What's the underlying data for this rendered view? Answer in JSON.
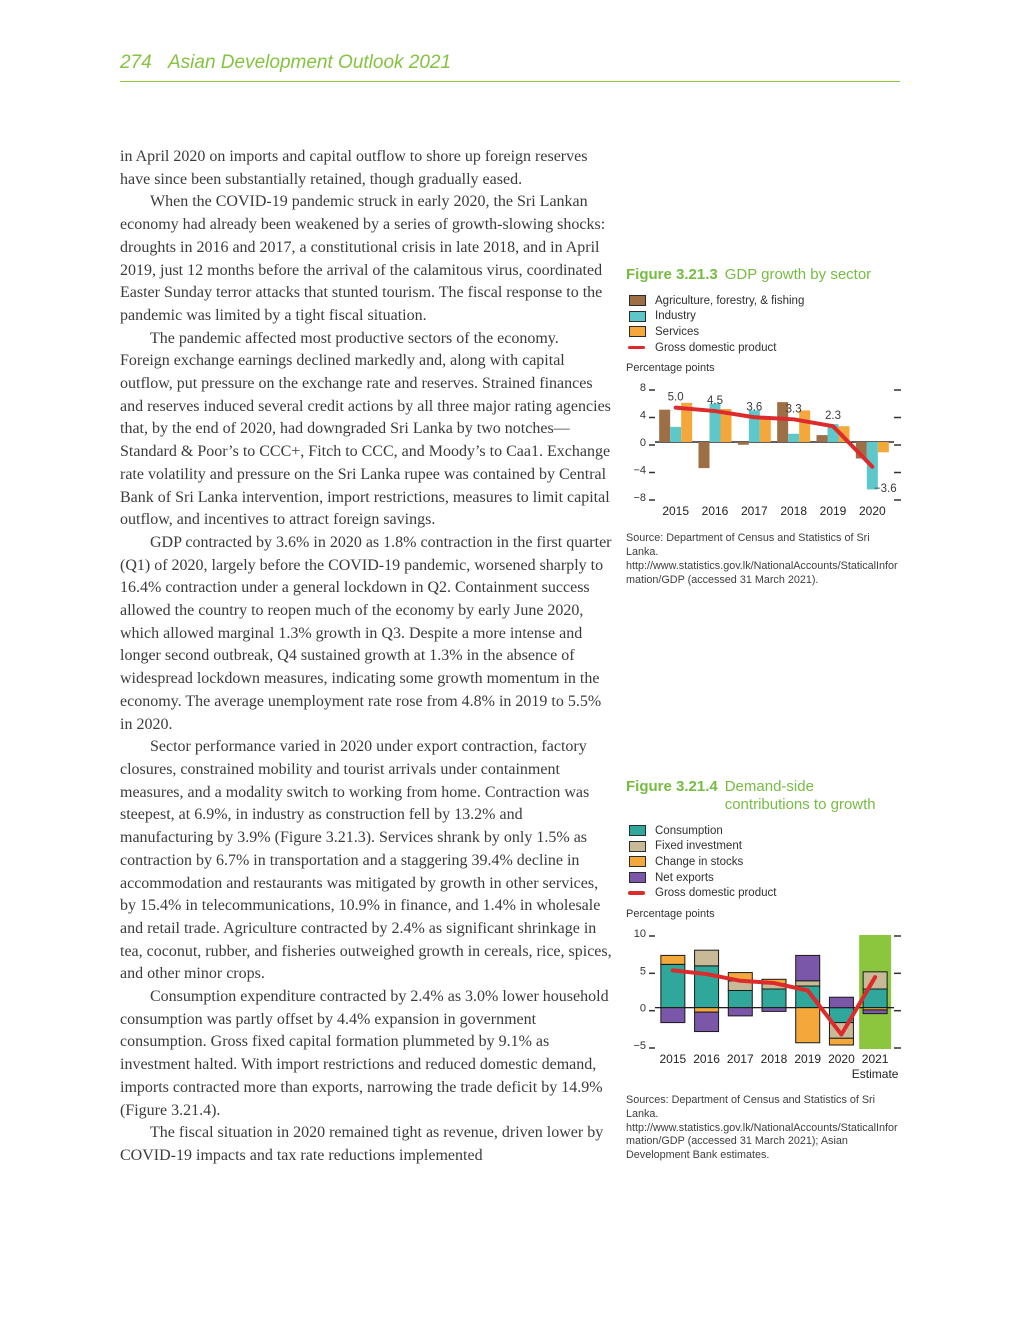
{
  "page": {
    "number": "274",
    "publication": "Asian Development Outlook 2021"
  },
  "body": {
    "paragraphs": [
      {
        "indent": false,
        "text": "in April 2020 on imports and capital outflow to shore up foreign reserves have since been substantially retained, though gradually eased."
      },
      {
        "indent": true,
        "text": "When the COVID-19 pandemic struck in early 2020, the Sri Lankan economy had already been weakened by a series of growth-slowing shocks: droughts in 2016 and 2017, a constitutional crisis in late 2018, and in April 2019, just 12 months before the arrival of the calamitous virus, coordinated Easter Sunday terror attacks that stunted tourism. The fiscal response to the pandemic was limited by a tight fiscal situation."
      },
      {
        "indent": true,
        "text": "The pandemic affected most productive sectors of the economy. Foreign exchange earnings declined markedly and, along with capital outflow, put pressure on the exchange rate and reserves. Strained finances and reserves induced several credit actions by all three major rating agencies that, by the end of 2020, had downgraded Sri Lanka by two notches—Standard & Poor’s to CCC+, Fitch to CCC, and Moody’s to Caa1. Exchange rate volatility and pressure on the Sri Lanka rupee was contained by Central Bank of Sri Lanka intervention, import restrictions, measures to limit capital outflow, and incentives to attract foreign savings."
      },
      {
        "indent": true,
        "text": "GDP contracted by 3.6% in 2020 as 1.8% contraction in the first quarter (Q1) of 2020, largely before the COVID-19 pandemic, worsened sharply to 16.4% contraction under a general lockdown in Q2. Containment success allowed the country to reopen much of the economy by early June 2020, which allowed marginal 1.3% growth in Q3. Despite a more intense and longer second outbreak, Q4 sustained growth at 1.3% in the absence of widespread lockdown measures, indicating some growth momentum in the economy. The average unemployment rate rose from 4.8% in 2019 to 5.5% in 2020."
      },
      {
        "indent": true,
        "text": "Sector performance varied in 2020 under export contraction, factory closures, constrained mobility and tourist arrivals under containment measures, and a modality switch to working from home. Contraction was steepest, at 6.9%, in industry as construction fell by 13.2% and manufacturing by 3.9% (Figure 3.21.3). Services shrank by only 1.5% as contraction by 6.7% in transportation and a staggering 39.4% decline in accommodation and restaurants was mitigated by growth in other services, by 15.4% in telecommunications, 10.9% in finance, and 1.4% in wholesale and retail trade. Agriculture contracted by 2.4% as significant shrinkage in tea, coconut, rubber, and fisheries outweighed growth in cereals, rice, spices, and other minor crops."
      },
      {
        "indent": true,
        "text": "Consumption expenditure contracted by 2.4% as 3.0% lower household consumption was partly offset by 4.4% expansion in government consumption. Gross fixed capital formation plummeted by 9.1% as investment halted. With import restrictions and reduced domestic demand, imports contracted more than exports, narrowing the trade deficit by 14.9% (Figure 3.21.4)."
      },
      {
        "indent": true,
        "text": "The fiscal situation in 2020 remained tight as revenue, driven lower by COVID-19 impacts and tax rate reductions implemented"
      }
    ]
  },
  "chart_data": [
    {
      "figure_label": "Figure 3.21.3",
      "title": "GDP growth by sector",
      "type": "bar",
      "grouping": "grouped",
      "unit_label": "Percentage points",
      "categories": [
        "2015",
        "2016",
        "2017",
        "2018",
        "2019",
        "2020"
      ],
      "ylim": [
        -8,
        8
      ],
      "yticks": [
        8,
        4,
        0,
        -4,
        -8
      ],
      "grid": false,
      "legend_position": "top",
      "series": [
        {
          "name": "Agriculture, forestry, & fishing",
          "color": "#9D6F46",
          "values": [
            4.7,
            -3.8,
            -0.4,
            5.8,
            1.0,
            -2.4
          ]
        },
        {
          "name": "Industry",
          "color": "#5EC7C9",
          "values": [
            2.2,
            5.6,
            4.6,
            1.2,
            2.6,
            -6.9
          ]
        },
        {
          "name": "Services",
          "color": "#F4A83B",
          "values": [
            5.7,
            4.8,
            3.4,
            4.6,
            2.3,
            -1.5
          ]
        }
      ],
      "line": {
        "name": "Gross domestic product",
        "color": "#DD2A2C",
        "values": [
          5.0,
          4.5,
          3.6,
          3.3,
          2.3,
          -3.6
        ],
        "point_labels": [
          "5.0",
          "4.5",
          "3.6",
          "3.3",
          "2.3",
          "−3.6"
        ]
      },
      "source": "Source: Department of Census and Statistics of Sri Lanka.  http://www.statistics.gov.lk/NationalAccounts/StaticalInformation/GDP (accessed 31 March 2021)."
    },
    {
      "figure_label": "Figure 3.21.4",
      "title": "Demand-side contributions to growth",
      "type": "bar",
      "grouping": "stacked",
      "unit_label": "Percentage points",
      "categories": [
        "2015",
        "2016",
        "2017",
        "2018",
        "2019",
        "2020",
        "2021"
      ],
      "estimate": {
        "index": 6,
        "label": "Estimate",
        "highlight_color": "#8CC63F"
      },
      "ylim": [
        -5,
        10
      ],
      "yticks": [
        10,
        5,
        0,
        -5
      ],
      "grid": false,
      "legend_position": "top",
      "series": [
        {
          "name": "Consumption",
          "color": "#2FA79A",
          "values": [
            5.8,
            5.6,
            2.3,
            2.5,
            2.9,
            -2.0,
            2.5
          ]
        },
        {
          "name": "Fixed investment",
          "color": "#C8B997",
          "values": [
            0.0,
            2.1,
            1.3,
            0.7,
            0.7,
            -2.1,
            2.3
          ]
        },
        {
          "name": "Change in stocks",
          "color": "#F4A83B",
          "values": [
            1.2,
            -0.6,
            1.1,
            0.6,
            -4.7,
            -0.9,
            -0.3
          ]
        },
        {
          "name": "Net exports",
          "color": "#7A57A8",
          "values": [
            -2.0,
            -2.6,
            -1.1,
            -0.5,
            3.4,
            1.4,
            -0.5
          ]
        }
      ],
      "line": {
        "name": "Gross domestic product",
        "color": "#DD2A2C",
        "values": [
          5.0,
          4.5,
          3.6,
          3.3,
          2.3,
          -3.6,
          4.1
        ]
      },
      "source": "Sources: Department of Census and Statistics of Sri Lanka.  http://www.statistics.gov.lk/NationalAccounts/StaticalInformation/GDP (accessed 31 March 2021); Asian Development Bank estimates."
    }
  ]
}
